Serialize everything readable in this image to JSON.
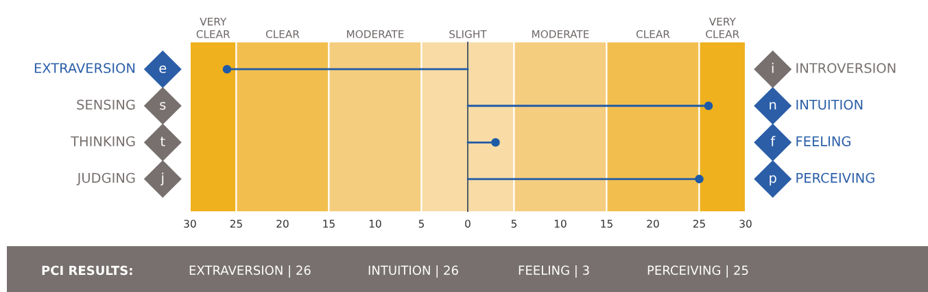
{
  "chart_data": {
    "type": "lollipop",
    "orientation": "horizontal",
    "categories": [
      "EXTRAVERSION",
      "SENSING",
      "THINKING",
      "JUDGING"
    ],
    "y2_categories": [
      "INTROVERSION",
      "INTUITION",
      "FEELING",
      "PERCEIVING"
    ],
    "values": [
      -26,
      26,
      3,
      25
    ],
    "color": "#1f5aa6",
    "marker": "circle",
    "xlim": [
      -30,
      30
    ],
    "xticks": [
      {
        "value": -30,
        "label": "30"
      },
      {
        "value": -25,
        "label": "25"
      },
      {
        "value": -20,
        "label": "20"
      },
      {
        "value": -15,
        "label": "15"
      },
      {
        "value": -10,
        "label": "10"
      },
      {
        "value": -5,
        "label": "5"
      },
      0,
      5,
      10,
      15,
      20,
      25,
      30
    ],
    "bands": [
      {
        "axis": "x",
        "from": -30,
        "to": -25,
        "label": "VERY\nCLEAR",
        "color": "#efb11d"
      },
      {
        "axis": "x",
        "from": -25,
        "to": -15,
        "label": "CLEAR",
        "color": "#f2bf4f"
      },
      {
        "axis": "x",
        "from": -15,
        "to": -5,
        "label": "MODERATE",
        "color": "#f5cd7f"
      },
      {
        "axis": "x",
        "from": -5,
        "to": 5,
        "label": "SLIGHT",
        "color": "#f8dba5"
      },
      {
        "axis": "x",
        "from": 5,
        "to": 15,
        "label": "MODERATE",
        "color": "#f5cd7f"
      },
      {
        "axis": "x",
        "from": 15,
        "to": 25,
        "label": "CLEAR",
        "color": "#f2bf4f"
      },
      {
        "axis": "x",
        "from": 25,
        "to": 30,
        "label": "VERY\nCLEAR",
        "color": "#efb11d"
      }
    ],
    "ref_lines": [
      {
        "axis": "x",
        "value": 0,
        "color": "#3e4d61"
      }
    ],
    "annotations": [
      "e",
      "s",
      "t",
      "j",
      "i",
      "n",
      "f",
      "p",
      "PCI RESULTS:",
      "EXTRAVERSION | 26",
      "INTUITION | 26",
      "FEELING | 3",
      "PERCEIVING | 25"
    ]
  }
}
